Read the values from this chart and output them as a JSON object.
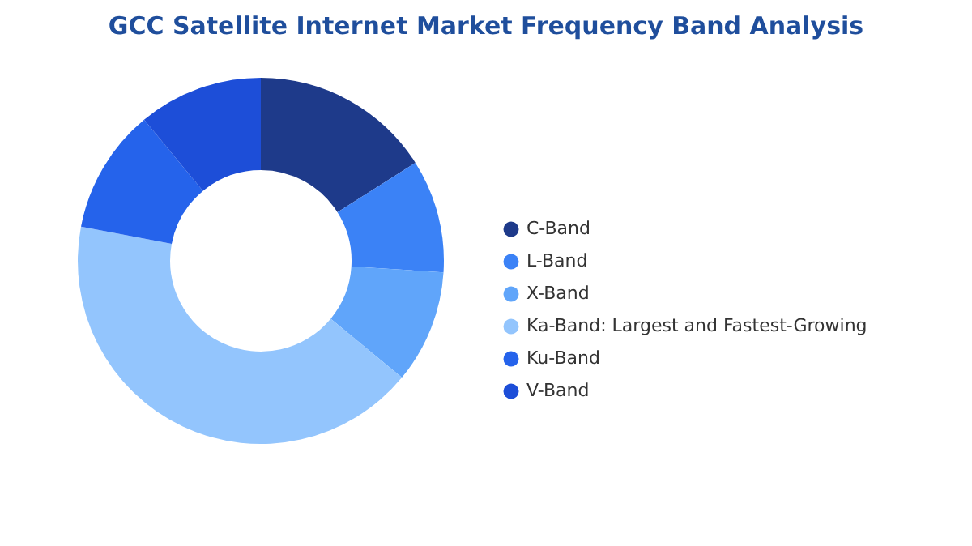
{
  "chart_data": {
    "type": "donut",
    "title": "GCC Satellite Internet Market Frequency Band Analysis",
    "categories": [
      "C-Band",
      "L-Band",
      "X-Band",
      "Ka-Band:  Largest and Fastest-Growing",
      "Ku-Band",
      "V-Band"
    ],
    "values": [
      16,
      10,
      10,
      42,
      11,
      11
    ],
    "colors": [
      "#1e3a8a",
      "#3b82f6",
      "#60a5fa",
      "#93c5fd",
      "#2563eb",
      "#1d4ed8"
    ],
    "legend": "right"
  }
}
